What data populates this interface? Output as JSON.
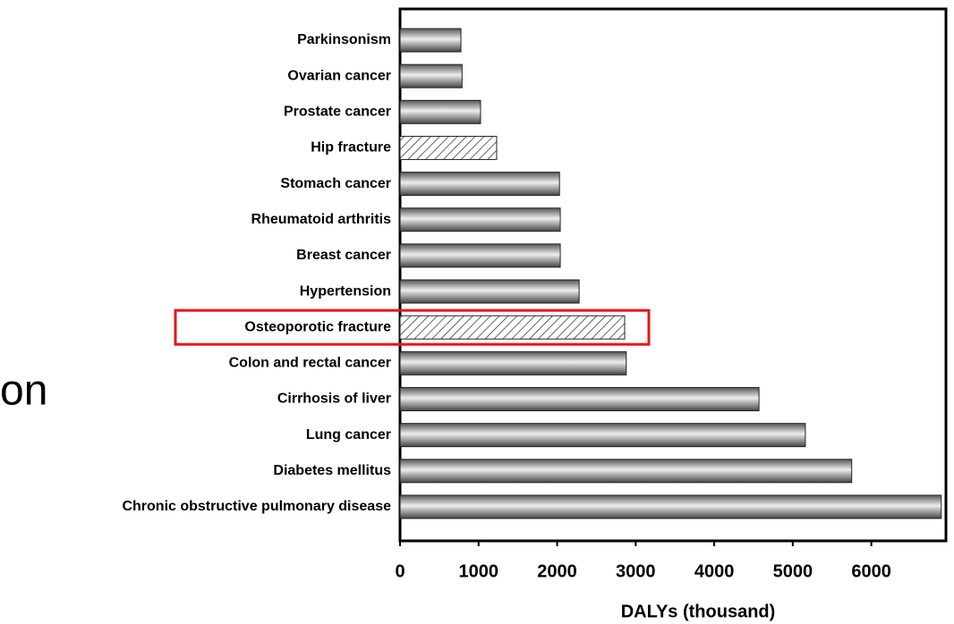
{
  "side_text": "on",
  "chart_data": {
    "type": "bar",
    "orientation": "horizontal",
    "categories": [
      "Parkinsonism",
      "Ovarian cancer",
      "Prostate cancer",
      "Hip fracture",
      "Stomach cancer",
      "Rheumatoid arthritis",
      "Breast cancer",
      "Hypertension",
      "Osteoporotic fracture",
      "Colon and rectal cancer",
      "Cirrhosis of liver",
      "Lung cancer",
      "Diabetes mellitus",
      "Chronic obstructive pulmonary disease"
    ],
    "values": [
      775,
      790,
      1025,
      1230,
      2030,
      2040,
      2040,
      2280,
      2860,
      2880,
      4570,
      5160,
      5750,
      6890
    ],
    "bar_styles": [
      "gradient",
      "gradient",
      "gradient",
      "hatch",
      "gradient",
      "gradient",
      "gradient",
      "gradient",
      "hatch",
      "gradient",
      "gradient",
      "gradient",
      "gradient",
      "gradient"
    ],
    "highlight_index": 8,
    "highlight_color": "#e8141b",
    "xlabel": "DALYs (thousand)",
    "xlim": [
      0,
      6950
    ],
    "xticks": [
      0,
      1000,
      2000,
      3000,
      4000,
      5000,
      6000
    ],
    "grid": false
  }
}
